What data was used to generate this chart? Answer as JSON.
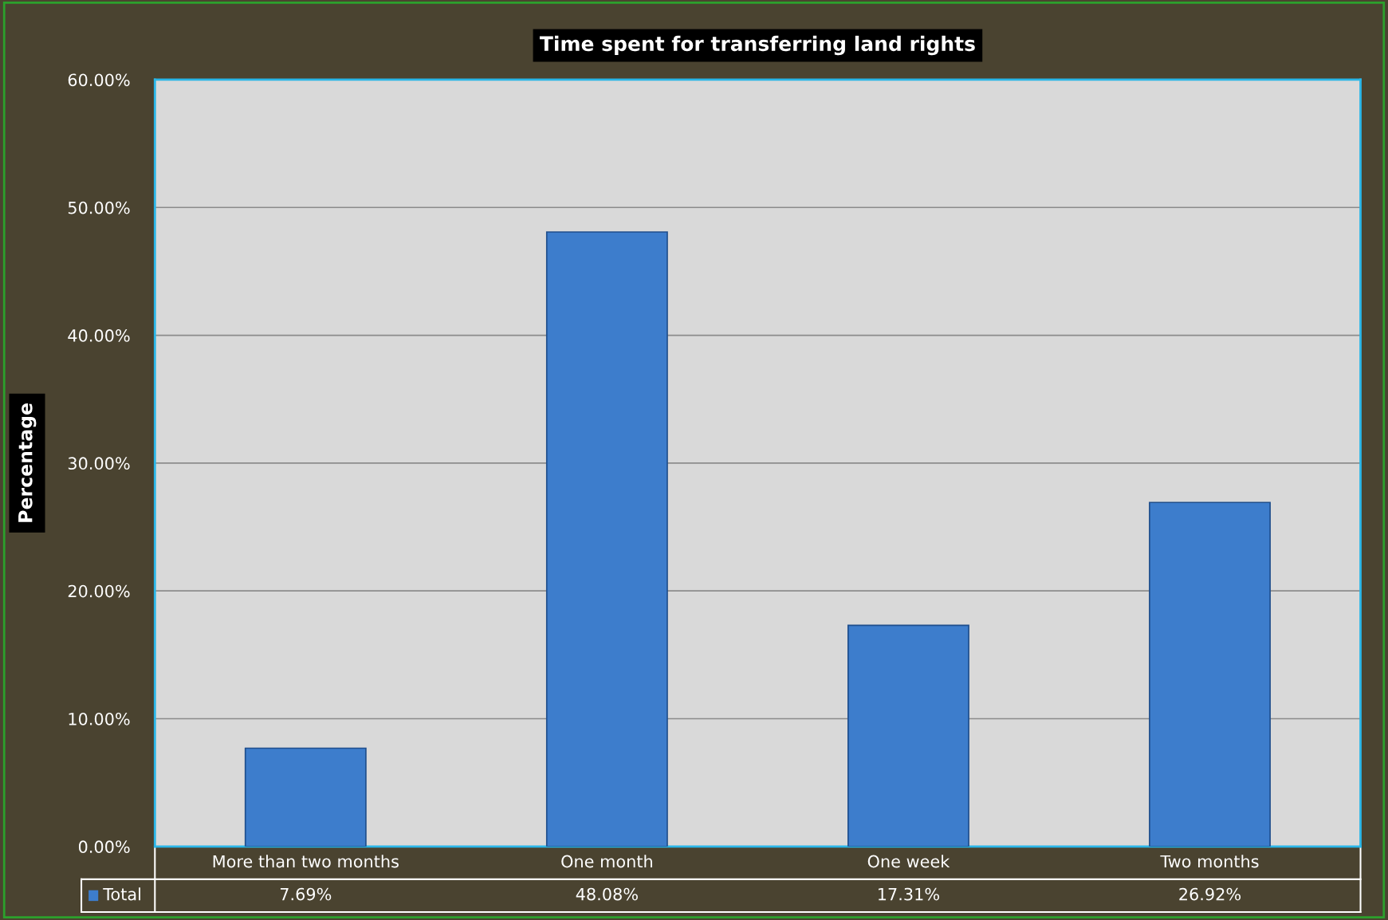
{
  "chart_data": {
    "type": "bar",
    "title": "Time spent for transferring land rights",
    "ylabel": "Percentage",
    "categories": [
      "More than two months",
      "One month",
      "One week",
      "Two months"
    ],
    "series": [
      {
        "name": "Total",
        "color": "#3d7dcc",
        "values": [
          7.69,
          48.08,
          17.31,
          26.92
        ],
        "value_labels": [
          "7.69%",
          "48.08%",
          "17.31%",
          "26.92%"
        ]
      }
    ],
    "ylim": [
      0,
      60
    ],
    "yticks": [
      {
        "value": 0,
        "label": "0.00%"
      },
      {
        "value": 10,
        "label": "10.00%"
      },
      {
        "value": 20,
        "label": "20.00%"
      },
      {
        "value": 30,
        "label": "30.00%"
      },
      {
        "value": 40,
        "label": "40.00%"
      },
      {
        "value": 50,
        "label": "50.00%"
      },
      {
        "value": 60,
        "label": "60.00%"
      }
    ],
    "grid": "y",
    "legend": "bottom"
  }
}
